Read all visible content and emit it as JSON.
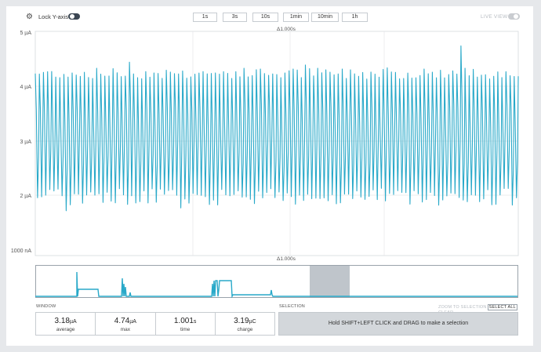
{
  "toolbar": {
    "lock_label": "Lock Y-axis",
    "live_label": "LIVE VIEW",
    "window_buttons": [
      "1s",
      "3s",
      "10s",
      "1min",
      "10min",
      "1h"
    ]
  },
  "chart_data": {
    "type": "line",
    "title": "",
    "xlabel": "",
    "ylabel": "",
    "y_ticks": [
      "5 µA",
      "4 µA",
      "3 µA",
      "2 µA",
      "1000 nA"
    ],
    "ylim": [
      1,
      5
    ],
    "x_span_label_top": "Δ1.000s",
    "x_span_label_bottom": "Δ1.000s",
    "color": "#29a9c9",
    "grid": true,
    "series": [
      {
        "description_hint": "",
        "min_typical": 2.1,
        "max_typical": 4.2,
        "peaks": [
          4.74,
          4.45,
          4.4,
          4.35
        ],
        "troughs": [
          1.8,
          1.85,
          1.9
        ]
      }
    ]
  },
  "stats": {
    "window_label": "WINDOW",
    "average": {
      "value": "3.18",
      "unit": "µA",
      "label": "average"
    },
    "max": {
      "value": "4.74",
      "unit": "µA",
      "label": "max"
    },
    "time": {
      "value": "1.001",
      "unit": "s",
      "label": "time"
    },
    "charge": {
      "value": "3.19",
      "unit": "µC",
      "label": "charge"
    }
  },
  "selection": {
    "label": "SELECTION",
    "zoom_to_selection": "ZOOM TO SELECTION",
    "select_all": "SELECT ALL",
    "clear": "CLEAR",
    "hint": "Hold SHIFT+LEFT CLICK and DRAG to make a selection"
  },
  "colors": {
    "trace": "#29a9c9",
    "minimap_window": "#bfc5cb",
    "toggle_dark": "#3b4652"
  }
}
